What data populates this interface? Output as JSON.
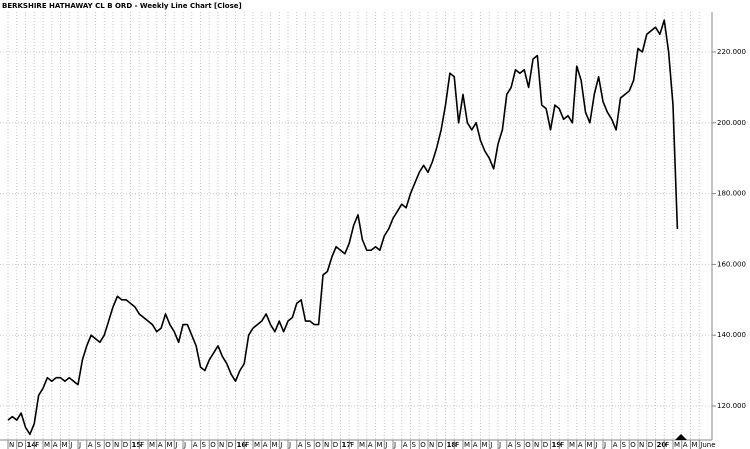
{
  "chart_data": {
    "type": "line",
    "title": "BERKSHIRE HATHAWAY CL B ORD - Weekly Line Chart [Close]",
    "categories": [
      "N",
      null,
      "D",
      null,
      "14",
      null,
      "F",
      null,
      "M",
      null,
      "A",
      null,
      "M",
      null,
      "J",
      null,
      "J",
      null,
      "A",
      null,
      "S",
      null,
      "O",
      null,
      "N",
      null,
      "D",
      null,
      "15",
      null,
      "F",
      null,
      "M",
      null,
      "A",
      null,
      "M",
      null,
      "J",
      null,
      "J",
      null,
      "A",
      null,
      "S",
      null,
      "O",
      null,
      "N",
      null,
      "D",
      null,
      "16",
      null,
      "F",
      null,
      "M",
      null,
      "A",
      null,
      "M",
      null,
      "J",
      null,
      "J",
      null,
      "A",
      null,
      "S",
      null,
      "O",
      null,
      "N",
      null,
      "D",
      null,
      "17",
      null,
      "F",
      null,
      "M",
      null,
      "A",
      null,
      "M",
      null,
      "J",
      null,
      "J",
      null,
      "A",
      null,
      "S",
      null,
      "O",
      null,
      "N",
      null,
      "D",
      null,
      "18",
      null,
      "F",
      null,
      "M",
      null,
      "A",
      null,
      "M",
      null,
      "J",
      null,
      "J",
      null,
      "A",
      null,
      "S",
      null,
      "O",
      null,
      "N",
      null,
      "D",
      null,
      "19",
      null,
      "F",
      null,
      "M",
      null,
      "A",
      null,
      "M",
      null,
      "J",
      null,
      "J",
      null,
      "A",
      null,
      "S",
      null,
      "O",
      null,
      "N",
      null,
      "D",
      null,
      "20",
      null,
      "F",
      null,
      "M",
      null,
      "A",
      null,
      "M",
      null,
      "June",
      null
    ],
    "series": [
      {
        "name": "Close",
        "color": "#000000",
        "values": [
          116,
          117,
          116,
          118,
          114,
          112,
          115,
          123,
          125,
          128,
          127,
          128,
          128,
          127,
          128,
          127,
          126,
          133,
          137,
          140,
          139,
          138,
          140,
          144,
          148,
          151,
          150,
          150,
          149,
          148,
          146,
          145,
          144,
          143,
          141,
          142,
          146,
          143,
          141,
          138,
          143,
          143,
          140,
          137,
          131,
          130,
          133,
          135,
          137,
          134,
          132,
          129,
          127,
          130,
          132,
          140,
          142,
          143,
          144,
          146,
          143,
          141,
          144,
          141,
          144,
          145,
          149,
          150,
          144,
          144,
          143,
          143,
          157,
          158,
          162,
          165,
          164,
          163,
          166,
          171,
          174,
          167,
          164,
          164,
          165,
          164,
          168,
          170,
          173,
          175,
          177,
          176,
          180,
          183,
          186,
          188,
          186,
          189,
          193,
          198,
          205,
          214,
          213,
          200,
          208,
          200,
          198,
          200,
          195,
          192,
          190,
          187,
          194,
          198,
          208,
          210,
          215,
          214,
          215,
          210,
          218,
          219,
          205,
          204,
          198,
          205,
          204,
          201,
          202,
          200,
          216,
          212,
          203,
          200,
          208,
          213,
          206,
          203,
          201,
          198,
          207,
          208,
          209,
          212,
          221,
          220,
          225,
          226,
          227,
          225,
          229,
          220,
          205,
          170,
          null,
          null,
          null,
          null,
          null,
          null
        ]
      }
    ],
    "ylim": [
      110.4,
      231.3
    ],
    "yticks": [
      {
        "value": 120,
        "label": "120.000"
      },
      {
        "value": 140,
        "label": "140.000"
      },
      {
        "value": 160,
        "label": "160.000"
      },
      {
        "value": 180,
        "label": "180.000"
      },
      {
        "value": 200,
        "label": "200.000"
      },
      {
        "value": 220,
        "label": "220.000"
      }
    ],
    "grid": true
  }
}
